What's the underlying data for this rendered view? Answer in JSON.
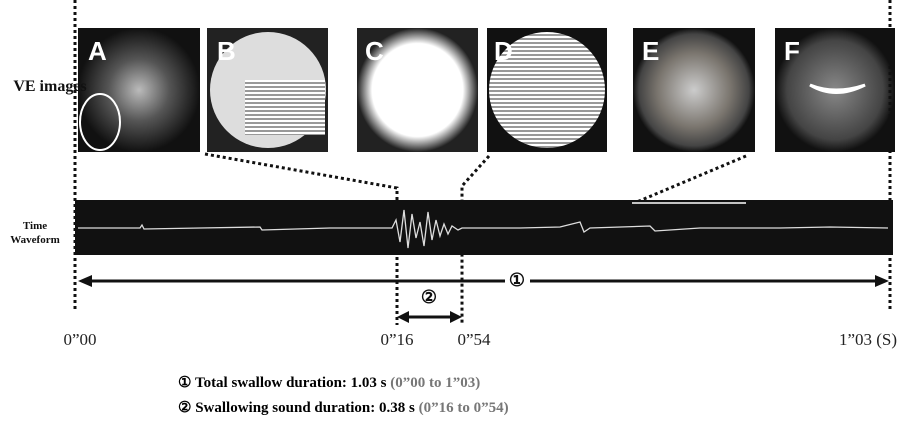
{
  "images": [
    {
      "label": "A"
    },
    {
      "label": "B"
    },
    {
      "label": "C"
    },
    {
      "label": "D"
    },
    {
      "label": "E"
    },
    {
      "label": "F"
    }
  ],
  "row_labels": {
    "images": "VE images",
    "waveform": "Time Waveform"
  },
  "arrows": [
    {
      "label": "①"
    },
    {
      "label": "②"
    }
  ],
  "time_labels": [
    "0”00",
    "0”16",
    "0”54",
    "1”03 (S)"
  ],
  "notes": [
    {
      "marker": "①",
      "text": "Total swallow duration: 1.03 s",
      "range": "(0”00 to 1”03)"
    },
    {
      "marker": "②",
      "text": "Swallowing sound duration: 0.38 s",
      "range": "(0”16 to 0”54)"
    }
  ]
}
